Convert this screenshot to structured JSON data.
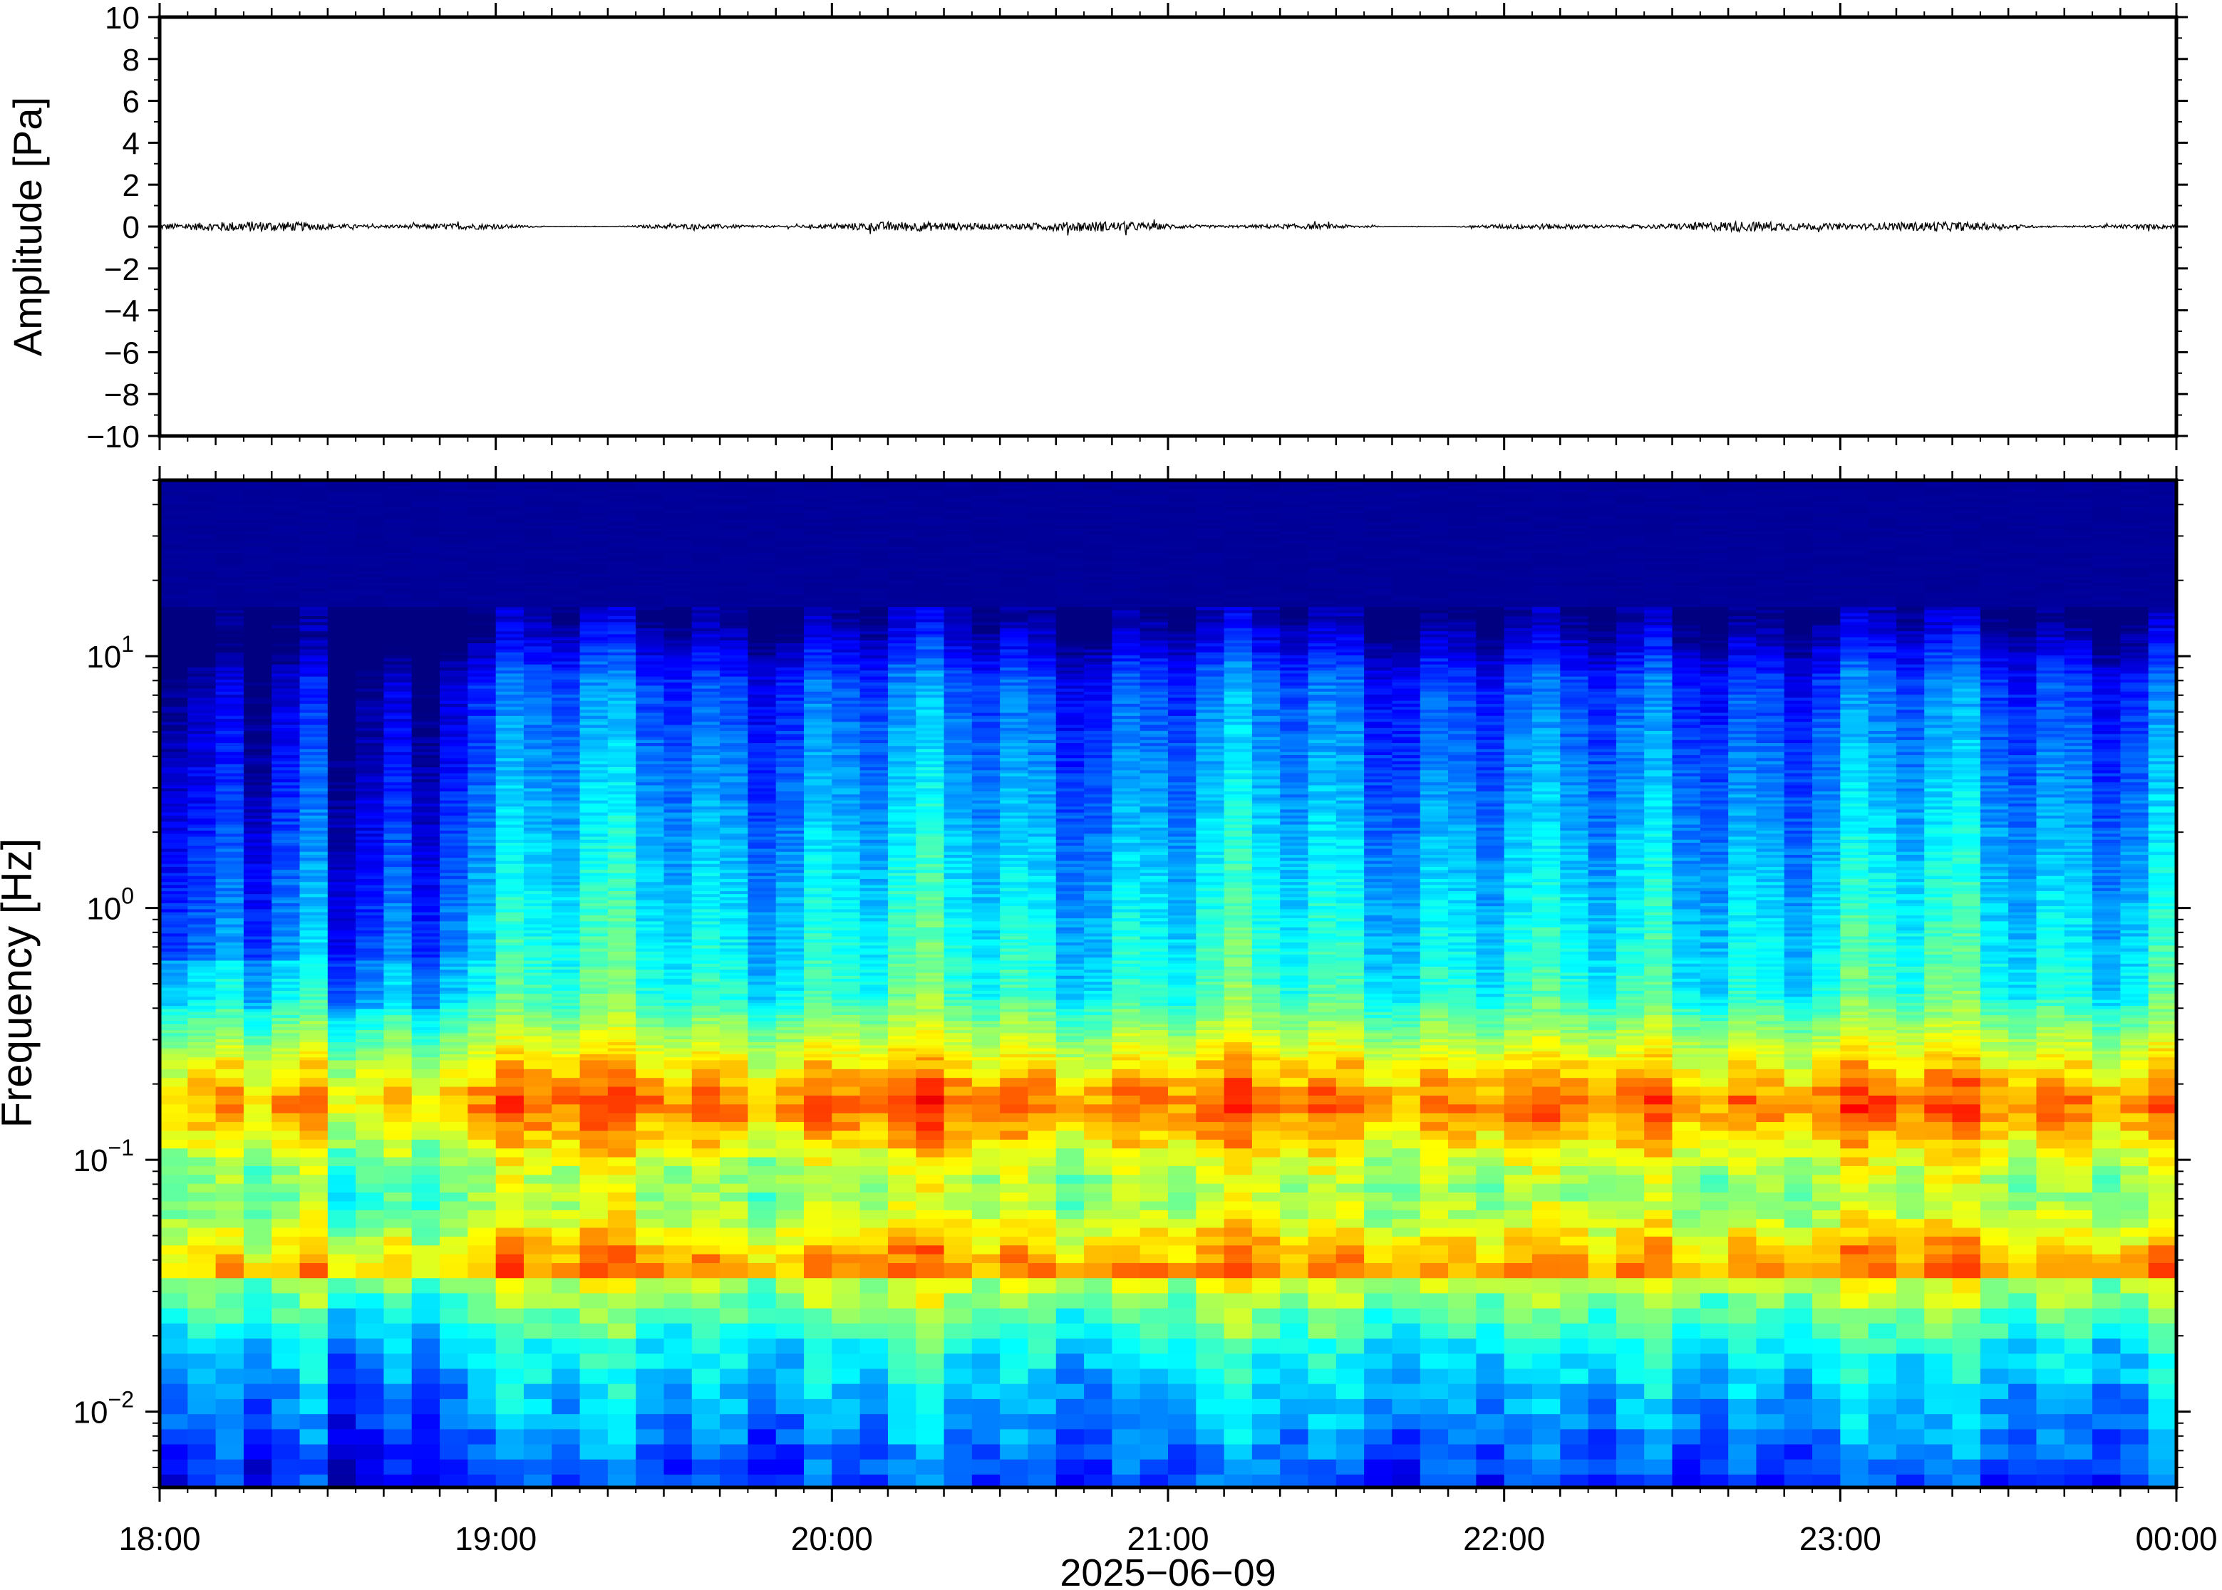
{
  "chart_data": [
    {
      "type": "line",
      "panel": "waveform",
      "ylabel": "Amplitude [Pa]",
      "ylim": [
        -10,
        10
      ],
      "yticks": [
        10,
        8,
        6,
        4,
        2,
        0,
        -2,
        -4,
        -6,
        -8,
        -10
      ],
      "ytick_labels": [
        "10",
        "8",
        "6",
        "4",
        "2",
        "0",
        "−2",
        "−4",
        "−6",
        "−8",
        "−10"
      ],
      "x_range": [
        "2025-06-09 18:00",
        "2025-06-10 00:00"
      ],
      "series": [
        {
          "values_description_free": true,
          "mean": 0,
          "peak_abs": 0.4
        }
      ],
      "grid": false
    },
    {
      "type": "heatmap",
      "panel": "spectrogram",
      "ylabel": "Frequency [Hz]",
      "yscale": "log",
      "ylim": [
        0.005,
        50
      ],
      "ytick_values": [
        10,
        1,
        0.1,
        0.01
      ],
      "ytick_labels": [
        {
          "base": "10",
          "exp": "1"
        },
        {
          "base": "10",
          "exp": "0"
        },
        {
          "base": "10",
          "exp": "−1"
        },
        {
          "base": "10",
          "exp": "−2"
        }
      ],
      "x_range": [
        "2025-06-09 18:00",
        "2025-06-10 00:00"
      ],
      "xtick_labels": [
        "18:00",
        "19:00",
        "20:00",
        "21:00",
        "22:00",
        "23:00",
        "00:00"
      ],
      "xlabel": "2025−06−09",
      "colormap": "jet",
      "grid": false
    }
  ],
  "colors": {
    "frame": "#000000",
    "colormap_low": "#0b0080",
    "colormap_high": "#ff5a1e"
  }
}
